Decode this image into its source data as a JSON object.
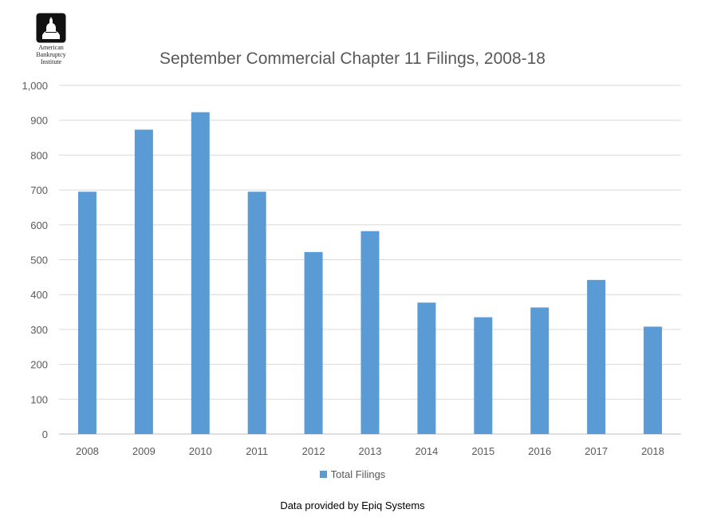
{
  "logo": {
    "lines": [
      "American",
      "Bankruptcy",
      "Institute"
    ],
    "icon": "capitol-dome-icon"
  },
  "colors": {
    "bar": "#5b9bd5",
    "grid": "#d9d9d9",
    "axis_text": "#595959"
  },
  "chart_data": {
    "type": "bar",
    "title": "September Commercial Chapter 11 Filings, 2008-18",
    "categories": [
      "2008",
      "2009",
      "2010",
      "2011",
      "2012",
      "2013",
      "2014",
      "2015",
      "2016",
      "2017",
      "2018"
    ],
    "series": [
      {
        "name": "Total Filings",
        "values": [
          695,
          873,
          923,
          695,
          522,
          582,
          377,
          335,
          363,
          442,
          308
        ]
      }
    ],
    "xlabel": "",
    "ylabel": "",
    "ylim": [
      0,
      1000
    ],
    "yticks": [
      "0",
      "100",
      "200",
      "300",
      "400",
      "500",
      "600",
      "700",
      "800",
      "900",
      "1,000"
    ],
    "grid": true,
    "legend": "bottom"
  },
  "footnote": "Data provided by Epiq Systems"
}
